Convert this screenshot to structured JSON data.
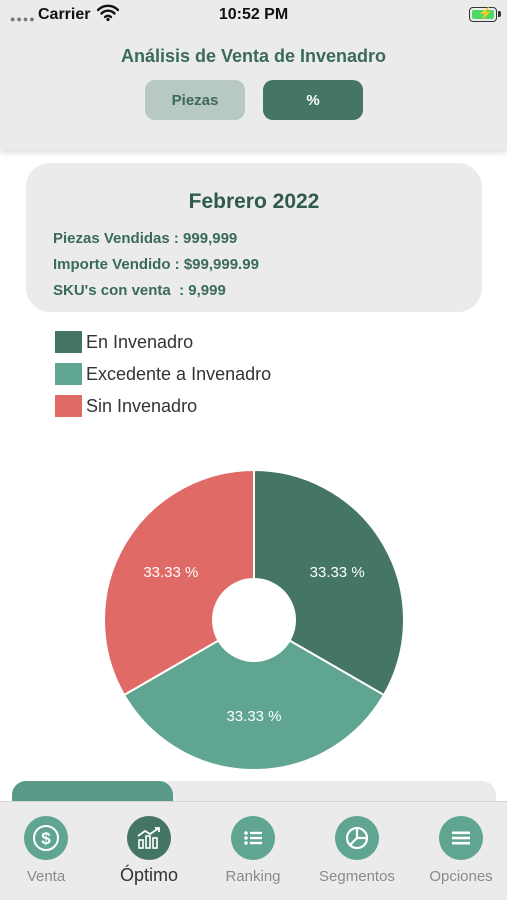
{
  "status_bar": {
    "carrier": "Carrier",
    "time": "10:52 PM"
  },
  "header": {
    "title": "Análisis de Venta de Invenadro",
    "segments": [
      {
        "label": "Piezas",
        "selected": false
      },
      {
        "label": "%",
        "selected": true
      }
    ]
  },
  "summary": {
    "period": "Febrero 2022",
    "lines": [
      "Piezas Vendidas : 999,999",
      "Importe Vendido : $99,999.99",
      "SKU's con venta  : 9,999"
    ]
  },
  "colors": {
    "en_invenadro": "#447565",
    "excedente": "#5fa591",
    "sin_invenadro": "#e06a66",
    "accent": "#3a6a5c"
  },
  "chart_data": {
    "type": "pie",
    "donut": true,
    "legend_position": "top-left",
    "series": [
      {
        "name": "En Invenadro",
        "value": 33.33,
        "label": "33.33 %",
        "color": "#447565"
      },
      {
        "name": "Excedente a Invenadro",
        "value": 33.33,
        "label": "33.33 %",
        "color": "#5fa591"
      },
      {
        "name": "Sin Invenadro",
        "value": 33.33,
        "label": "33.33 %",
        "color": "#e06a66"
      }
    ]
  },
  "tabs": [
    {
      "label": "Venta",
      "icon": "dollar-icon",
      "active": false
    },
    {
      "label": "Óptimo",
      "icon": "chart-trend-icon",
      "active": true
    },
    {
      "label": "Ranking",
      "icon": "list-icon",
      "active": false
    },
    {
      "label": "Segmentos",
      "icon": "pie-chart-icon",
      "active": false
    },
    {
      "label": "Opciones",
      "icon": "menu-icon",
      "active": false
    }
  ]
}
